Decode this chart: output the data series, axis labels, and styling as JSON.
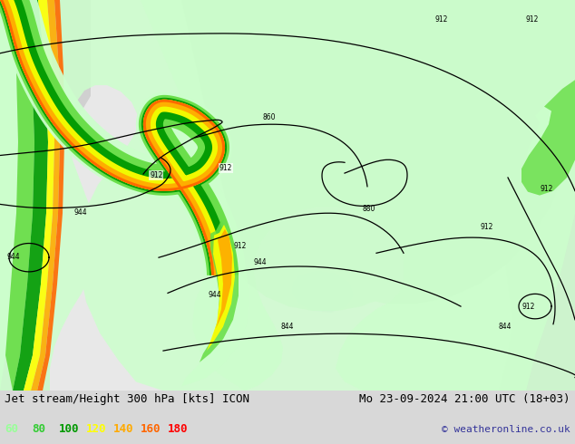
{
  "title_left": "Jet stream/Height 300 hPa [kts] ICON",
  "title_right": "Mo 23-09-2024 21:00 UTC (18+03)",
  "copyright": "© weatheronline.co.uk",
  "legend_values": [
    60,
    80,
    100,
    120,
    140,
    160,
    180
  ],
  "legend_colors": [
    "#99ff99",
    "#33cc33",
    "#009900",
    "#ffff00",
    "#ffaa00",
    "#ff6600",
    "#ff0000"
  ],
  "bg_color": "#d8d8d8",
  "ocean_color": "#d0d0d0",
  "land_color": "#e8e8e8",
  "contour_color": "#000000",
  "jet_colors_ordered": [
    "#ccffcc",
    "#66dd44",
    "#009900",
    "#ffff00",
    "#ffaa00",
    "#ff6600",
    "#cc2200"
  ],
  "title_fontsize": 9,
  "legend_fontsize": 9,
  "copyright_fontsize": 8,
  "fig_width": 6.34,
  "fig_height": 4.9,
  "dpi": 100
}
